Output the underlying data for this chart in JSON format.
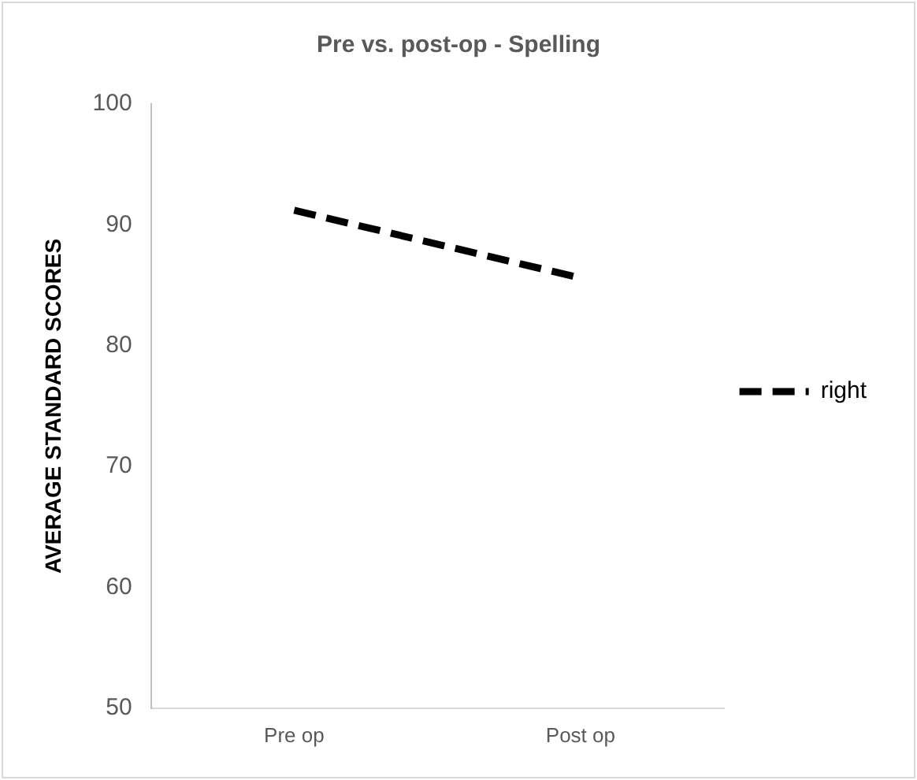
{
  "chart_data": {
    "type": "line",
    "title": "Pre vs. post-op - Spelling",
    "ylabel": "AVERAGE STANDARD SCORES",
    "categories": [
      "Pre op",
      "Post op"
    ],
    "series": [
      {
        "name": "right",
        "color": "#000000",
        "values": [
          91.2,
          85.6
        ]
      }
    ],
    "ylim": [
      50,
      100
    ],
    "yticks": [
      50,
      60,
      70,
      80,
      90,
      100
    ],
    "grid": false,
    "legend": "right",
    "marker": "none",
    "line_style": "dashed"
  }
}
